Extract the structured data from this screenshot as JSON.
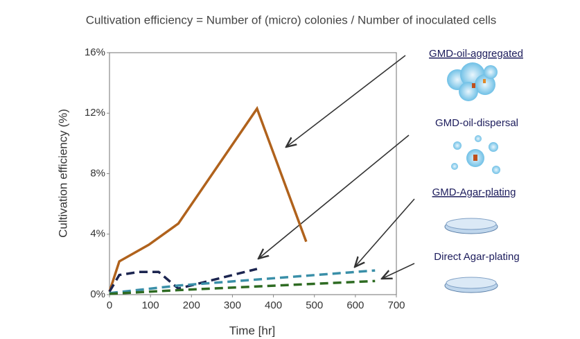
{
  "chart_data": {
    "type": "line",
    "title": "Cultivation efficiency = Number of (micro) colonies / Number of inoculated cells",
    "x_label": "Time [hr]",
    "y_label": "Cultivation efficiency (%)",
    "xlim": [
      0,
      700
    ],
    "xticks": [
      0,
      100,
      200,
      300,
      400,
      500,
      600,
      700
    ],
    "ylim": [
      0,
      16
    ],
    "yticks": [
      {
        "value": 0,
        "label": "0%"
      },
      {
        "value": 4,
        "label": "4%"
      },
      {
        "value": 8,
        "label": "8%"
      },
      {
        "value": 12,
        "label": "12%"
      },
      {
        "value": 16,
        "label": "16%"
      }
    ],
    "series": [
      {
        "name": "GMD-oil-aggregated",
        "color": "#b0621c",
        "dash": false,
        "x": [
          0,
          24,
          96,
          168,
          360,
          480
        ],
        "values": [
          0.2,
          2.2,
          3.3,
          4.7,
          12.3,
          3.5
        ]
      },
      {
        "name": "GMD-oil-dispersal",
        "color": "#1c2550",
        "dash": true,
        "x": [
          0,
          24,
          72,
          120,
          168,
          360
        ],
        "values": [
          0.2,
          1.3,
          1.5,
          1.5,
          0.4,
          1.7
        ]
      },
      {
        "name": "GMD-Agar-plating",
        "color": "#3a8fa8",
        "dash": true,
        "x": [
          0,
          168,
          648
        ],
        "values": [
          0.1,
          0.6,
          1.6
        ]
      },
      {
        "name": "Direct Agar-plating",
        "color": "#2e6b22",
        "dash": true,
        "x": [
          0,
          168,
          648
        ],
        "values": [
          0.05,
          0.3,
          0.9
        ]
      }
    ]
  }
}
